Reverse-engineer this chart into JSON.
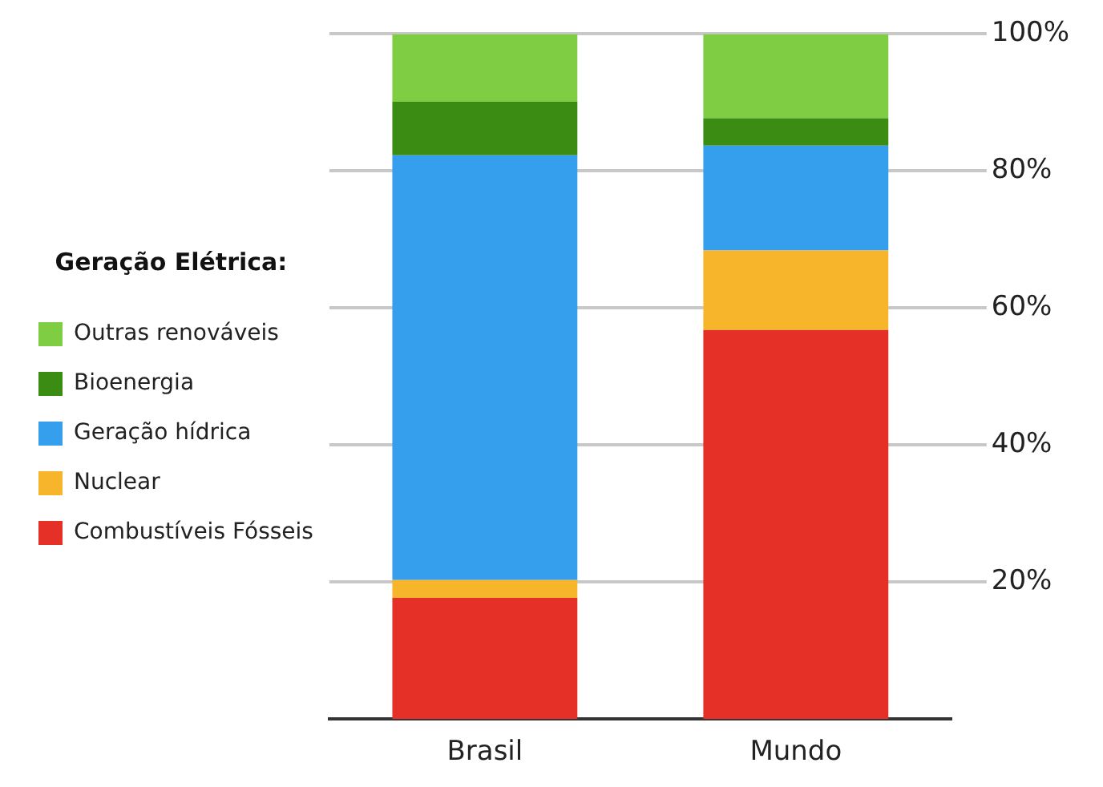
{
  "chart_data": {
    "type": "bar",
    "legend_title": "Geração Elétrica:",
    "categories": [
      "Brasil",
      "Mundo"
    ],
    "series": [
      {
        "name": "Combustíveis Fósseis",
        "color": "#e53027",
        "values": [
          17.7,
          56.8
        ]
      },
      {
        "name": "Nuclear",
        "color": "#f7b52c",
        "values": [
          2.6,
          11.6
        ]
      },
      {
        "name": "Geração hídrica",
        "color": "#359fee",
        "values": [
          62.0,
          15.3
        ]
      },
      {
        "name": "Bioenergia",
        "color": "#3a8c12",
        "values": [
          7.8,
          4.0
        ]
      },
      {
        "name": "Outras renováveis",
        "color": "#7fcd43",
        "values": [
          9.9,
          12.3
        ]
      }
    ],
    "stacked": true,
    "ylim": [
      0,
      100
    ],
    "yticks": [
      {
        "value": 20,
        "label": "20%"
      },
      {
        "value": 40,
        "label": "40%"
      },
      {
        "value": 60,
        "label": "60%"
      },
      {
        "value": 80,
        "label": "80%"
      },
      {
        "value": 100,
        "label": "100%"
      }
    ],
    "grid": "y",
    "legend": "left"
  }
}
